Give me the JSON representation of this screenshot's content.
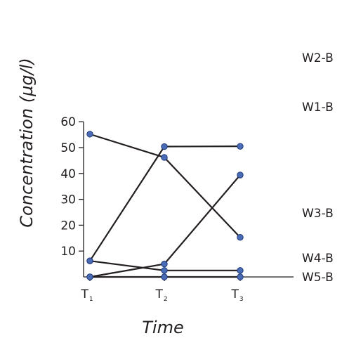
{
  "chart_data": {
    "type": "line",
    "x": [
      "T1",
      "T2",
      "T3"
    ],
    "x_tick_labels": [
      {
        "main": "T",
        "sub": "1"
      },
      {
        "main": "T",
        "sub": "2"
      },
      {
        "main": "T",
        "sub": "3"
      }
    ],
    "ylabel": "Concentration (µg/l)",
    "xlabel": "Time",
    "ylim": [
      0,
      60
    ],
    "yticks": [
      10,
      20,
      30,
      40,
      50,
      60
    ],
    "grid": false,
    "legend": "right (direct labels)",
    "series": [
      {
        "name": "W2-B",
        "values": [
          6.2,
          50.4,
          50.5
        ]
      },
      {
        "name": "W1-B",
        "values": [
          0,
          5.0,
          39.4
        ]
      },
      {
        "name": "W3-B",
        "values": [
          55.2,
          46.2,
          15.3
        ]
      },
      {
        "name": "W4-B",
        "values": [
          6.2,
          2.5,
          2.5
        ]
      },
      {
        "name": "W5-B",
        "values": [
          0,
          0,
          0
        ]
      }
    ],
    "line_color": "#231f20",
    "marker_color": "#4a6bb5",
    "marker_edge_color": "#1f3a78"
  }
}
